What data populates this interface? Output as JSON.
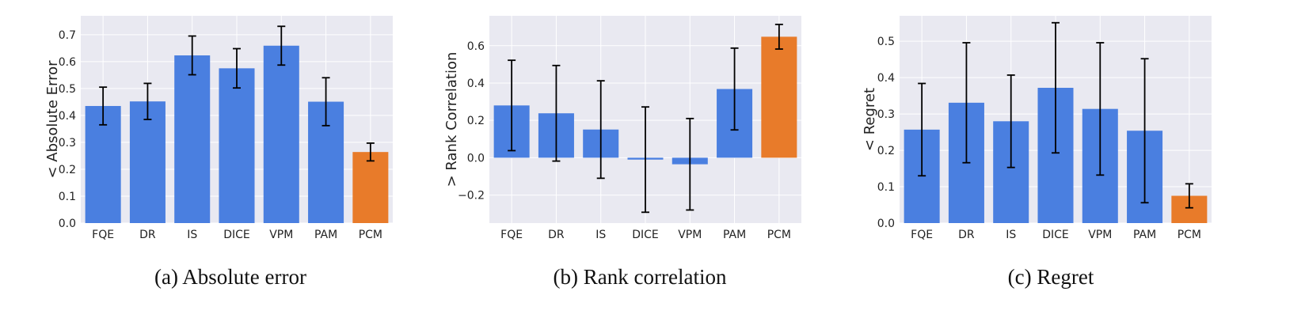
{
  "colors": {
    "baseline": "#4a7fe0",
    "highlight": "#e87b2a",
    "panel_bg": "#e9e9f1",
    "grid": "#ffffff",
    "errorbar": "#000000"
  },
  "chart_data": [
    {
      "type": "bar",
      "caption": "(a)  Absolute error",
      "ylabel": "< Absolute Error",
      "categories": [
        "FQE",
        "DR",
        "IS",
        "DICE",
        "VPM",
        "PAM",
        "PCM"
      ],
      "values": [
        0.435,
        0.452,
        0.623,
        0.575,
        0.659,
        0.451,
        0.264
      ],
      "errors": [
        0.07,
        0.067,
        0.072,
        0.073,
        0.072,
        0.089,
        0.033
      ],
      "highlight": "PCM",
      "ylim": [
        0,
        0.77
      ],
      "yticks": [
        0.0,
        0.1,
        0.2,
        0.3,
        0.4,
        0.5,
        0.6,
        0.7
      ],
      "ytick_labels": [
        "0.0",
        "0.1",
        "0.2",
        "0.3",
        "0.4",
        "0.5",
        "0.6",
        "0.7"
      ],
      "grid": true,
      "legend": "none"
    },
    {
      "type": "bar",
      "caption": "(b)  Rank correlation",
      "ylabel": "> Rank Correlation",
      "categories": [
        "FQE",
        "DR",
        "IS",
        "DICE",
        "VPM",
        "PAM",
        "PCM"
      ],
      "values": [
        0.28,
        0.238,
        0.151,
        -0.01,
        -0.035,
        0.368,
        0.648
      ],
      "errors": [
        0.242,
        0.256,
        0.261,
        0.282,
        0.245,
        0.219,
        0.066
      ],
      "highlight": "PCM",
      "ylim": [
        -0.35,
        0.76
      ],
      "yticks": [
        -0.2,
        0.0,
        0.2,
        0.4,
        0.6
      ],
      "ytick_labels": [
        "−0.2",
        "0.0",
        "0.2",
        "0.4",
        "0.6"
      ],
      "grid": true,
      "legend": "none"
    },
    {
      "type": "bar",
      "caption": "(c)  Regret",
      "ylabel": "< Regret",
      "categories": [
        "FQE",
        "DR",
        "IS",
        "DICE",
        "VPM",
        "PAM",
        "PCM"
      ],
      "values": [
        0.257,
        0.331,
        0.28,
        0.372,
        0.314,
        0.254,
        0.075
      ],
      "errors": [
        0.127,
        0.165,
        0.127,
        0.179,
        0.182,
        0.198,
        0.033
      ],
      "highlight": "PCM",
      "ylim": [
        0,
        0.57
      ],
      "yticks": [
        0.0,
        0.1,
        0.2,
        0.3,
        0.4,
        0.5
      ],
      "ytick_labels": [
        "0.0",
        "0.1",
        "0.2",
        "0.3",
        "0.4",
        "0.5"
      ],
      "grid": true,
      "legend": "none"
    }
  ]
}
